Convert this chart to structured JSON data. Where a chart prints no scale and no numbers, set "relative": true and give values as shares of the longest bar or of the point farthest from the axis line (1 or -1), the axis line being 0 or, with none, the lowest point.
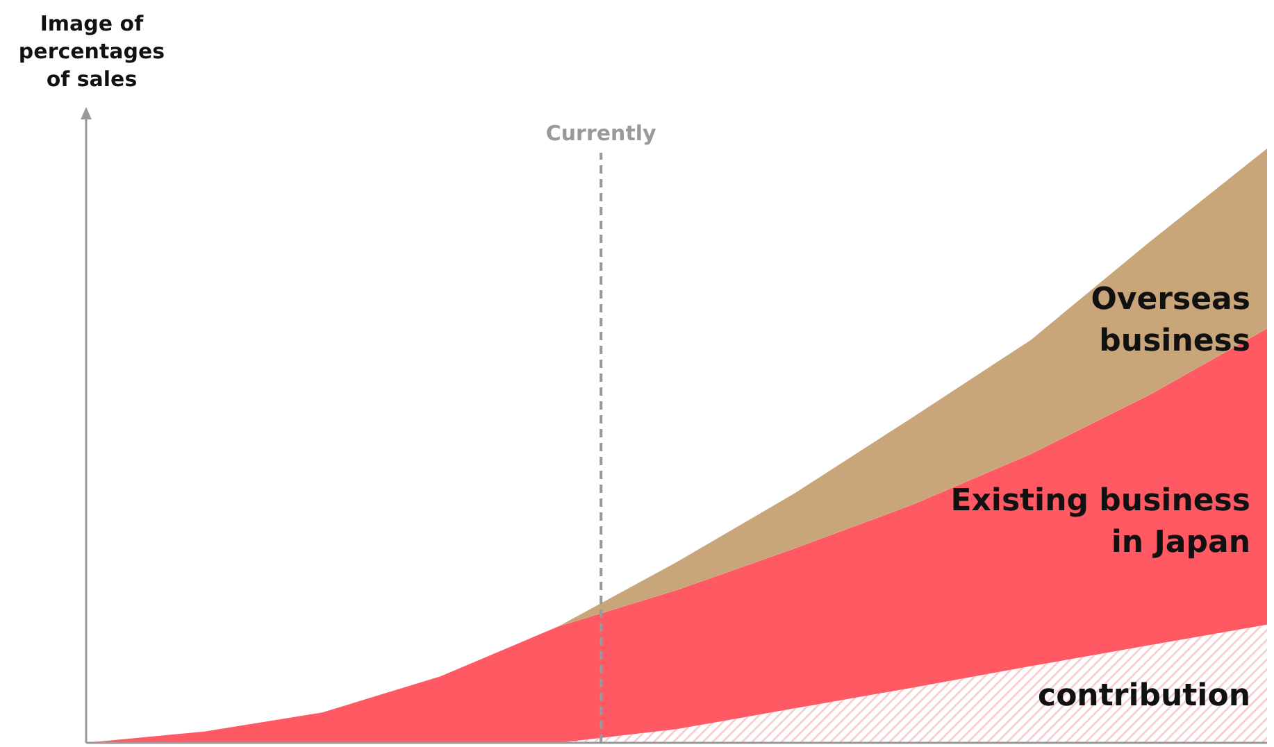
{
  "chart_data": {
    "type": "area",
    "stacked": true,
    "relative": true,
    "ylabel": "Image of\npercentages\nof sales",
    "categories": [
      null,
      null,
      null,
      null,
      null,
      null,
      null,
      null,
      null,
      null,
      null
    ],
    "legend": false,
    "annotations": [
      "Currently"
    ],
    "series": [
      {
        "name": "contribution",
        "color": "#f6c9cc",
        "values": [
          0,
          0,
          0,
          0,
          0,
          0.023,
          0.058,
          0.093,
          0.129,
          0.164,
          0.199
        ]
      },
      {
        "name": "Existing business\nin Japan",
        "color": "#ff5964",
        "values": [
          0,
          0.019,
          0.051,
          0.112,
          0.196,
          0.234,
          0.269,
          0.308,
          0.357,
          0.421,
          0.498
        ]
      },
      {
        "name": "Overseas\nbusiness",
        "color": "#c9a57a",
        "values": [
          0,
          0,
          0,
          0,
          0,
          0.047,
          0.093,
          0.147,
          0.192,
          0.257,
          0.303
        ]
      }
    ]
  }
}
